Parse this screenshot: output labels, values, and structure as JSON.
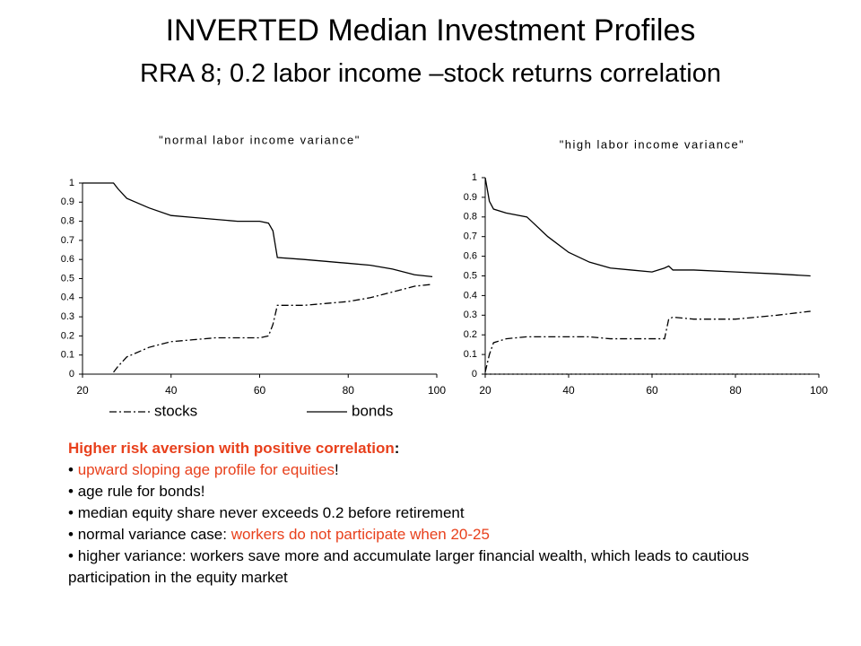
{
  "title": "INVERTED Median Investment Profiles",
  "subtitle": "RRA 8; 0.2 labor income –stock returns correlation",
  "heading": [
    {
      "text": "Higher risk aversion with positive correlation",
      "color": "#e8401c"
    },
    {
      "text": ":",
      "color": "#000000"
    }
  ],
  "bullets": [
    [
      {
        "text": "upward sloping age profile for equities",
        "color": "#e8401c"
      },
      {
        "text": "!",
        "color": "#000000"
      }
    ],
    [
      {
        "text": "age rule for bonds!",
        "color": "#000000"
      }
    ],
    [
      {
        "text": "median equity share never exceeds 0.2 before retirement",
        "color": "#000000"
      }
    ],
    [
      {
        "text": "normal variance case: ",
        "color": "#000000"
      },
      {
        "text": "workers do not participate when 20-25",
        "color": "#e8401c"
      }
    ],
    [
      {
        "text": "higher variance: workers save more and accumulate larger financial wealth, which leads to cautious participation in the equity market",
        "color": "#000000"
      }
    ]
  ],
  "chart_data": [
    {
      "type": "line",
      "title": "\"normal labor income variance\"",
      "x": [
        20,
        25,
        27,
        28,
        30,
        35,
        40,
        45,
        50,
        55,
        60,
        62,
        63,
        64,
        70,
        75,
        80,
        85,
        90,
        95,
        99
      ],
      "series": [
        {
          "name": "stocks",
          "color": "#000000",
          "dash": "8 3 2 3",
          "values": [
            null,
            null,
            0.01,
            0.04,
            0.09,
            0.14,
            0.17,
            0.18,
            0.19,
            0.19,
            0.19,
            0.2,
            0.26,
            0.36,
            0.36,
            0.37,
            0.38,
            0.4,
            0.43,
            0.46,
            0.47
          ]
        },
        {
          "name": "bonds",
          "color": "#000000",
          "dash": "none",
          "values": [
            1,
            1,
            1,
            0.97,
            0.92,
            0.87,
            0.83,
            0.82,
            0.81,
            0.8,
            0.8,
            0.79,
            0.75,
            0.61,
            0.6,
            0.59,
            0.58,
            0.57,
            0.55,
            0.52,
            0.51
          ]
        }
      ],
      "xlim": [
        20,
        100
      ],
      "xticks": [
        20,
        40,
        60,
        80,
        100
      ],
      "ylim": [
        0,
        1
      ],
      "yticks": [
        0,
        0.1,
        0.2,
        0.3,
        0.4,
        0.5,
        0.6,
        0.7,
        0.8,
        0.9,
        1
      ],
      "legend": "bottom"
    },
    {
      "type": "line",
      "title": "\"high labor income variance\"",
      "x": [
        20,
        21,
        22,
        25,
        30,
        32,
        35,
        40,
        45,
        50,
        55,
        60,
        63,
        64,
        65,
        70,
        80,
        90,
        98
      ],
      "series": [
        {
          "color": "#000000",
          "dash": "8 3 2 3",
          "values": [
            0.01,
            0.1,
            0.16,
            0.18,
            0.19,
            0.19,
            0.19,
            0.19,
            0.19,
            0.18,
            0.18,
            0.18,
            0.18,
            0.28,
            0.29,
            0.28,
            0.28,
            0.3,
            0.32
          ]
        },
        {
          "color": "#000000",
          "dash": "none",
          "values": [
            1,
            0.88,
            0.84,
            0.82,
            0.8,
            0.76,
            0.7,
            0.62,
            0.57,
            0.54,
            0.53,
            0.52,
            0.54,
            0.55,
            0.53,
            0.53,
            0.52,
            0.51,
            0.5
          ]
        },
        {
          "color": "#000000",
          "dash": "2 3",
          "values": [
            0,
            0,
            0,
            0,
            0,
            0,
            0,
            0,
            0,
            0,
            0,
            0,
            0,
            0,
            0,
            0,
            0,
            0,
            0
          ]
        }
      ],
      "xlim": [
        20,
        100
      ],
      "xticks": [
        20,
        40,
        60,
        80,
        100
      ],
      "ylim": [
        0,
        1
      ],
      "yticks": [
        0,
        0.1,
        0.2,
        0.3,
        0.4,
        0.5,
        0.6,
        0.7,
        0.8,
        0.9,
        1
      ],
      "legend": "none"
    }
  ]
}
